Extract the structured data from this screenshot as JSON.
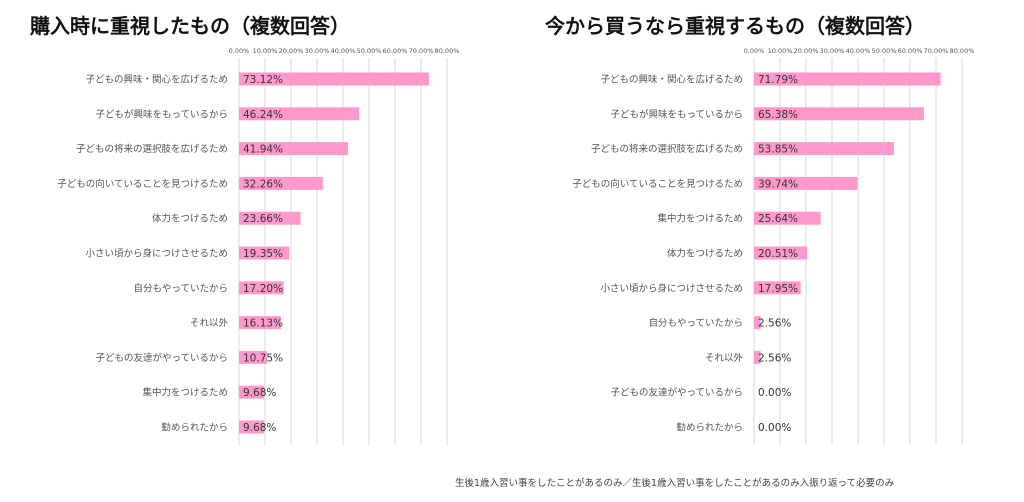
{
  "chart_data": [
    {
      "type": "bar",
      "orientation": "horizontal",
      "title": "購入時に重視したもの（複数回答）",
      "categories": [
        "子どもの興味・関心を広げるため",
        "子どもが興味をもっているから",
        "子どもの将来の選択肢を広げるため",
        "子どもの向いていることを見つけるため",
        "体力をつけるため",
        "小さい頃から身につけさせるため",
        "自分もやっていたから",
        "それ以外",
        "子どもの友達がやっているから",
        "集中力をつけるため",
        "勧められたから"
      ],
      "values": [
        73.12,
        46.24,
        41.94,
        32.26,
        23.66,
        19.35,
        17.2,
        16.13,
        10.75,
        9.68,
        9.68
      ],
      "value_labels": [
        "73.12%",
        "46.24%",
        "41.94%",
        "32.26%",
        "23.66%",
        "19.35%",
        "17.20%",
        "16.13%",
        "10.75%",
        "9.68%",
        "9.68%"
      ],
      "xlim": [
        0,
        80
      ],
      "ticks": [
        "0.00%",
        "10.00%",
        "20.00%",
        "30.00%",
        "40.00%",
        "50.00%",
        "60.00%",
        "70.00%",
        "80.00%"
      ],
      "grid": true,
      "bar_color": "#ff99cc"
    },
    {
      "type": "bar",
      "orientation": "horizontal",
      "title": "今から買うなら重視するもの（複数回答）",
      "categories": [
        "子どもの興味・関心を広げるため",
        "子どもが興味をもっているから",
        "子どもの将来の選択肢を広げるため",
        "子どもの向いていることを見つけるため",
        "集中力をつけるため",
        "体力をつけるため",
        "小さい頃から身につけさせるため",
        "自分もやっていたから",
        "それ以外",
        "子どもの友達がやっているから",
        "勧められたから"
      ],
      "values": [
        71.79,
        65.38,
        53.85,
        39.74,
        25.64,
        20.51,
        17.95,
        2.56,
        2.56,
        0.0,
        0.0
      ],
      "value_labels": [
        "71.79%",
        "65.38%",
        "53.85%",
        "39.74%",
        "25.64%",
        "20.51%",
        "17.95%",
        "2.56%",
        "2.56%",
        "0.00%",
        "0.00%"
      ],
      "xlim": [
        0,
        80
      ],
      "ticks": [
        "0.00%",
        "10.00%",
        "20.00%",
        "30.00%",
        "40.00%",
        "50.00%",
        "60.00%",
        "70.00%",
        "80.00%"
      ],
      "grid": true,
      "bar_color": "#ff99cc"
    }
  ],
  "footnote": "生後1歳入習い事をしたことがあるのみ／生後1歳入習い事をしたことがあるのみ入振り返って必要のみ"
}
